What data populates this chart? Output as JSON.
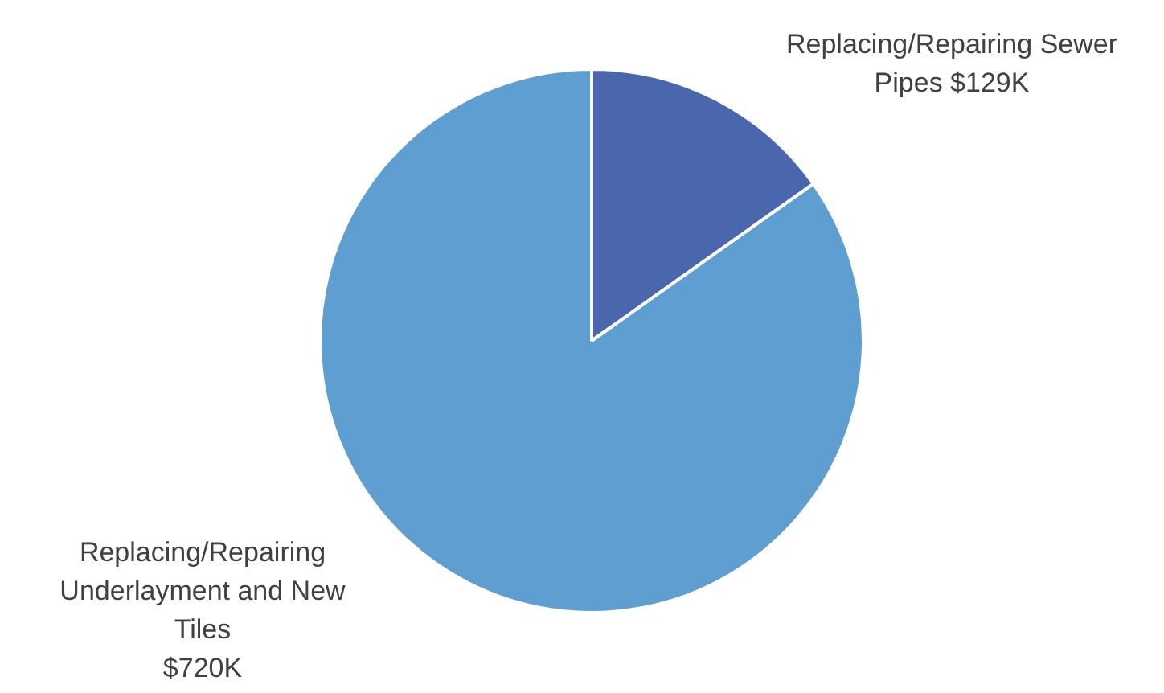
{
  "chart_data": {
    "type": "pie",
    "categories": [
      "Replacing/Repairing Sewer Pipes",
      "Replacing/Repairing Underlayment and New Tiles"
    ],
    "values": [
      129,
      720
    ],
    "colors": [
      "#4a66ad",
      "#5f9ed1"
    ],
    "value_labels": [
      "$129K",
      "$720K"
    ],
    "legend": false
  }
}
